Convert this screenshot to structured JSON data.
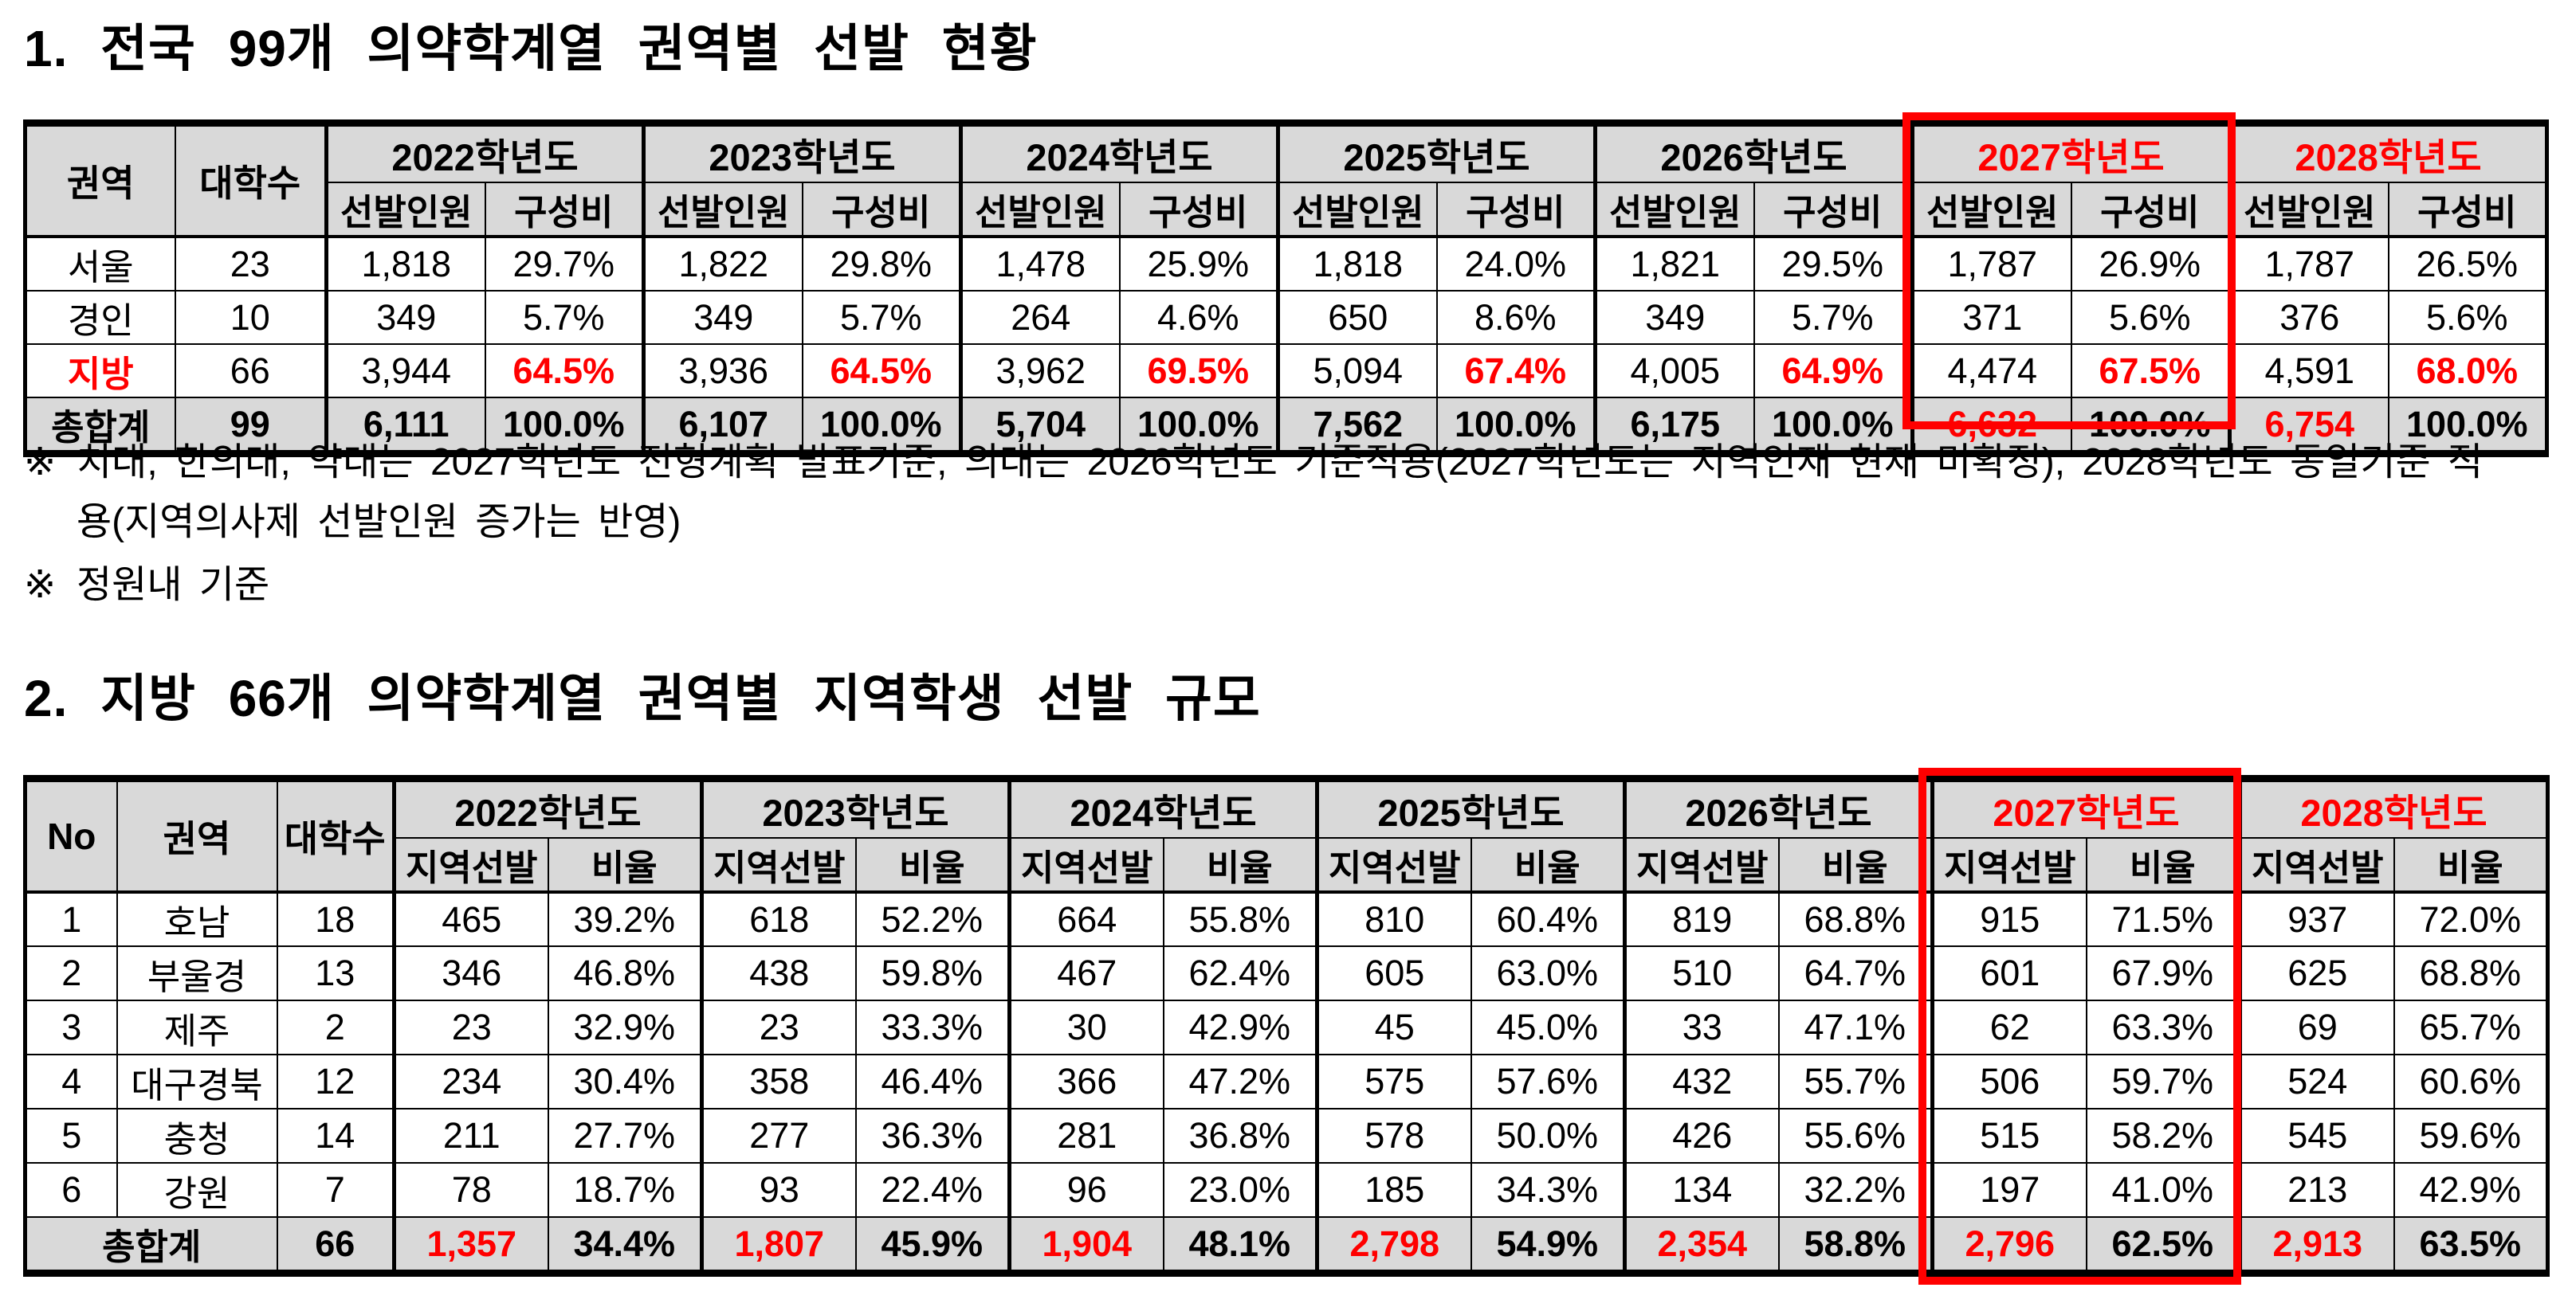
{
  "colors": {
    "accent_red": "#ff0000",
    "header_gray": "#d9d9d9",
    "text_black": "#000000"
  },
  "section1": {
    "title": "1. 전국 99개 의약학계열 권역별 선발 현황",
    "table": {
      "head": {
        "region": "권역",
        "univ": "대학수",
        "enroll": "선발인원",
        "ratio": "구성비"
      },
      "years": [
        {
          "label": "2022학년도",
          "red": false
        },
        {
          "label": "2023학년도",
          "red": false
        },
        {
          "label": "2024학년도",
          "red": false
        },
        {
          "label": "2025학년도",
          "red": false
        },
        {
          "label": "2026학년도",
          "red": false
        },
        {
          "label": "2027학년도",
          "red": true
        },
        {
          "label": "2028학년도",
          "red": true
        }
      ],
      "rows": [
        {
          "region": "서울",
          "region_red": false,
          "univ": "23",
          "years": [
            {
              "n": "1,818",
              "p": "29.7%"
            },
            {
              "n": "1,822",
              "p": "29.8%"
            },
            {
              "n": "1,478",
              "p": "25.9%"
            },
            {
              "n": "1,818",
              "p": "24.0%"
            },
            {
              "n": "1,821",
              "p": "29.5%"
            },
            {
              "n": "1,787",
              "p": "26.9%"
            },
            {
              "n": "1,787",
              "p": "26.5%"
            }
          ]
        },
        {
          "region": "경인",
          "region_red": false,
          "univ": "10",
          "years": [
            {
              "n": "349",
              "p": "5.7%"
            },
            {
              "n": "349",
              "p": "5.7%"
            },
            {
              "n": "264",
              "p": "4.6%"
            },
            {
              "n": "650",
              "p": "8.6%"
            },
            {
              "n": "349",
              "p": "5.7%"
            },
            {
              "n": "371",
              "p": "5.6%"
            },
            {
              "n": "376",
              "p": "5.6%"
            }
          ]
        },
        {
          "region": "지방",
          "region_red": true,
          "univ": "66",
          "years": [
            {
              "n": "3,944",
              "p": "64.5%",
              "p_red": true
            },
            {
              "n": "3,936",
              "p": "64.5%",
              "p_red": true
            },
            {
              "n": "3,962",
              "p": "69.5%",
              "p_red": true
            },
            {
              "n": "5,094",
              "p": "67.4%",
              "p_red": true
            },
            {
              "n": "4,005",
              "p": "64.9%",
              "p_red": true
            },
            {
              "n": "4,474",
              "p": "67.5%",
              "p_red": true
            },
            {
              "n": "4,591",
              "p": "68.0%",
              "p_red": true
            }
          ]
        }
      ],
      "total": {
        "label": "총합계",
        "univ": "99",
        "years": [
          {
            "n": "6,111",
            "p": "100.0%"
          },
          {
            "n": "6,107",
            "p": "100.0%"
          },
          {
            "n": "5,704",
            "p": "100.0%"
          },
          {
            "n": "7,562",
            "p": "100.0%"
          },
          {
            "n": "6,175",
            "p": "100.0%"
          },
          {
            "n": "6,632",
            "n_red": true,
            "p": "100.0%"
          },
          {
            "n": "6,754",
            "n_red": true,
            "p": "100.0%"
          }
        ]
      }
    },
    "notes": [
      {
        "marker": "※",
        "lines": [
          "치대, 한의대, 약대는 2027학년도 전형계획 발표기준, 의대는 2026학년도 기준적용(2027학년도는 지역인재 현재 미확정), 2028학년도 동일기준 적",
          "용(지역의사제 선발인원 증가는 반영)"
        ]
      },
      {
        "marker": "※",
        "lines": [
          "정원내 기준"
        ]
      }
    ]
  },
  "section2": {
    "title": "2. 지방 66개 의약학계열 권역별 지역학생 선발 규모",
    "table": {
      "head": {
        "no": "No",
        "region": "권역",
        "univ": "대학수",
        "enroll": "지역선발",
        "ratio": "비율"
      },
      "years": [
        {
          "label": "2022학년도",
          "red": false
        },
        {
          "label": "2023학년도",
          "red": false
        },
        {
          "label": "2024학년도",
          "red": false
        },
        {
          "label": "2025학년도",
          "red": false
        },
        {
          "label": "2026학년도",
          "red": false
        },
        {
          "label": "2027학년도",
          "red": true
        },
        {
          "label": "2028학년도",
          "red": true
        }
      ],
      "rows": [
        {
          "no": "1",
          "region": "호남",
          "univ": "18",
          "years": [
            {
              "n": "465",
              "p": "39.2%"
            },
            {
              "n": "618",
              "p": "52.2%"
            },
            {
              "n": "664",
              "p": "55.8%"
            },
            {
              "n": "810",
              "p": "60.4%"
            },
            {
              "n": "819",
              "p": "68.8%"
            },
            {
              "n": "915",
              "p": "71.5%"
            },
            {
              "n": "937",
              "p": "72.0%"
            }
          ]
        },
        {
          "no": "2",
          "region": "부울경",
          "univ": "13",
          "years": [
            {
              "n": "346",
              "p": "46.8%"
            },
            {
              "n": "438",
              "p": "59.8%"
            },
            {
              "n": "467",
              "p": "62.4%"
            },
            {
              "n": "605",
              "p": "63.0%"
            },
            {
              "n": "510",
              "p": "64.7%"
            },
            {
              "n": "601",
              "p": "67.9%"
            },
            {
              "n": "625",
              "p": "68.8%"
            }
          ]
        },
        {
          "no": "3",
          "region": "제주",
          "univ": "2",
          "years": [
            {
              "n": "23",
              "p": "32.9%"
            },
            {
              "n": "23",
              "p": "33.3%"
            },
            {
              "n": "30",
              "p": "42.9%"
            },
            {
              "n": "45",
              "p": "45.0%"
            },
            {
              "n": "33",
              "p": "47.1%"
            },
            {
              "n": "62",
              "p": "63.3%"
            },
            {
              "n": "69",
              "p": "65.7%"
            }
          ]
        },
        {
          "no": "4",
          "region": "대구경북",
          "univ": "12",
          "years": [
            {
              "n": "234",
              "p": "30.4%"
            },
            {
              "n": "358",
              "p": "46.4%"
            },
            {
              "n": "366",
              "p": "47.2%"
            },
            {
              "n": "575",
              "p": "57.6%"
            },
            {
              "n": "432",
              "p": "55.7%"
            },
            {
              "n": "506",
              "p": "59.7%"
            },
            {
              "n": "524",
              "p": "60.6%"
            }
          ]
        },
        {
          "no": "5",
          "region": "충청",
          "univ": "14",
          "years": [
            {
              "n": "211",
              "p": "27.7%"
            },
            {
              "n": "277",
              "p": "36.3%"
            },
            {
              "n": "281",
              "p": "36.8%"
            },
            {
              "n": "578",
              "p": "50.0%"
            },
            {
              "n": "426",
              "p": "55.6%"
            },
            {
              "n": "515",
              "p": "58.2%"
            },
            {
              "n": "545",
              "p": "59.6%"
            }
          ]
        },
        {
          "no": "6",
          "region": "강원",
          "univ": "7",
          "years": [
            {
              "n": "78",
              "p": "18.7%"
            },
            {
              "n": "93",
              "p": "22.4%"
            },
            {
              "n": "96",
              "p": "23.0%"
            },
            {
              "n": "185",
              "p": "34.3%"
            },
            {
              "n": "134",
              "p": "32.2%"
            },
            {
              "n": "197",
              "p": "41.0%"
            },
            {
              "n": "213",
              "p": "42.9%"
            }
          ]
        }
      ],
      "total": {
        "label": "총합계",
        "univ": "66",
        "years": [
          {
            "n": "1,357",
            "n_red": true,
            "p": "34.4%"
          },
          {
            "n": "1,807",
            "n_red": true,
            "p": "45.9%"
          },
          {
            "n": "1,904",
            "n_red": true,
            "p": "48.1%"
          },
          {
            "n": "2,798",
            "n_red": true,
            "p": "54.9%"
          },
          {
            "n": "2,354",
            "n_red": true,
            "p": "58.8%"
          },
          {
            "n": "2,796",
            "n_red": true,
            "p": "62.5%"
          },
          {
            "n": "2,913",
            "n_red": true,
            "p": "63.5%"
          }
        ]
      }
    }
  }
}
